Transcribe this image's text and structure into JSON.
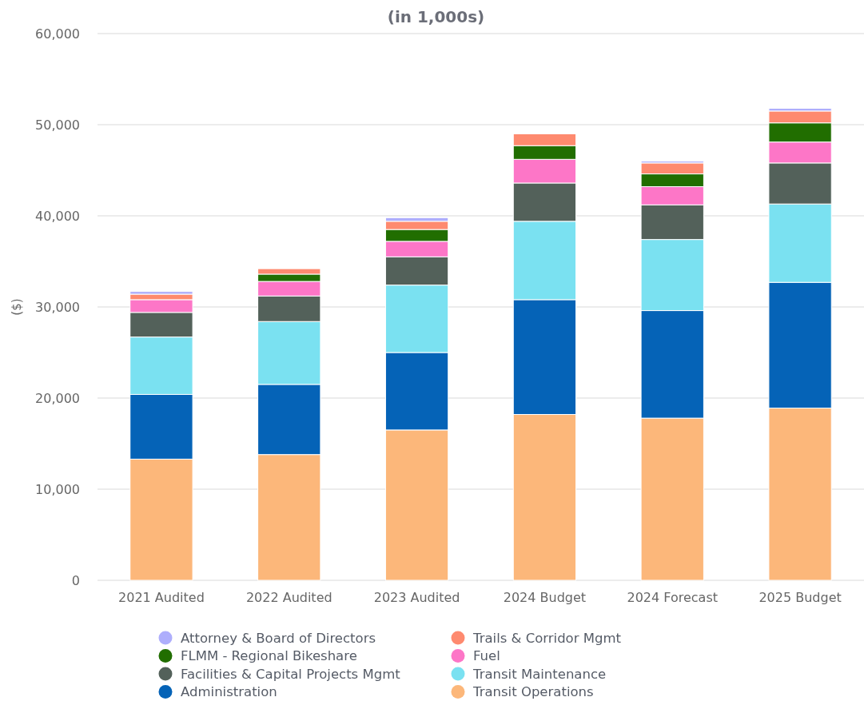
{
  "chart_data": {
    "type": "bar",
    "title": "(in 1,000s)",
    "ylabel": "($)",
    "categories": [
      "2021 Audited",
      "2022 Audited",
      "2023 Audited",
      "2024 Budget",
      "2024 Forecast",
      "2025 Budget"
    ],
    "stacked": true,
    "ylim": [
      0,
      60000
    ],
    "yticks": [
      0,
      {
        "value": 10000,
        "label": "10,000"
      },
      {
        "value": 20000,
        "label": "20,000"
      },
      {
        "value": 30000,
        "label": "30,000"
      },
      {
        "value": 40000,
        "label": "40,000"
      },
      {
        "value": 50000,
        "label": "50,000"
      },
      {
        "value": 60000,
        "label": "60,000"
      }
    ],
    "grid": "y",
    "legend": "bottom",
    "series": [
      {
        "name": "Transit Operations",
        "color": "#fcb77a",
        "values": [
          13300,
          13800,
          16500,
          18200,
          17800,
          18900
        ]
      },
      {
        "name": "Administration",
        "color": "#0563b7",
        "values": [
          7100,
          7700,
          8500,
          12600,
          11800,
          13800
        ]
      },
      {
        "name": "Transit Maintenance",
        "color": "#7ae1f1",
        "values": [
          6300,
          6900,
          7400,
          8600,
          7800,
          8600
        ]
      },
      {
        "name": "Facilities & Capital Projects Mgmt",
        "color": "#53615a",
        "values": [
          2700,
          2800,
          3100,
          4200,
          3800,
          4500
        ]
      },
      {
        "name": "Fuel",
        "color": "#fd76c7",
        "values": [
          1400,
          1600,
          1700,
          2600,
          2000,
          2300
        ]
      },
      {
        "name": "FLMM - Regional Bikeshare",
        "color": "#216e00",
        "values": [
          null,
          800,
          1300,
          1500,
          1400,
          2100
        ]
      },
      {
        "name": "Trails & Corridor Mgmt",
        "color": "#fe8a6f",
        "values": [
          600,
          600,
          900,
          1300,
          1200,
          1300
        ]
      },
      {
        "name": "Attorney & Board of Directors",
        "color": "#aeaefc",
        "values": [
          300,
          null,
          400,
          null,
          200,
          300
        ]
      }
    ]
  }
}
